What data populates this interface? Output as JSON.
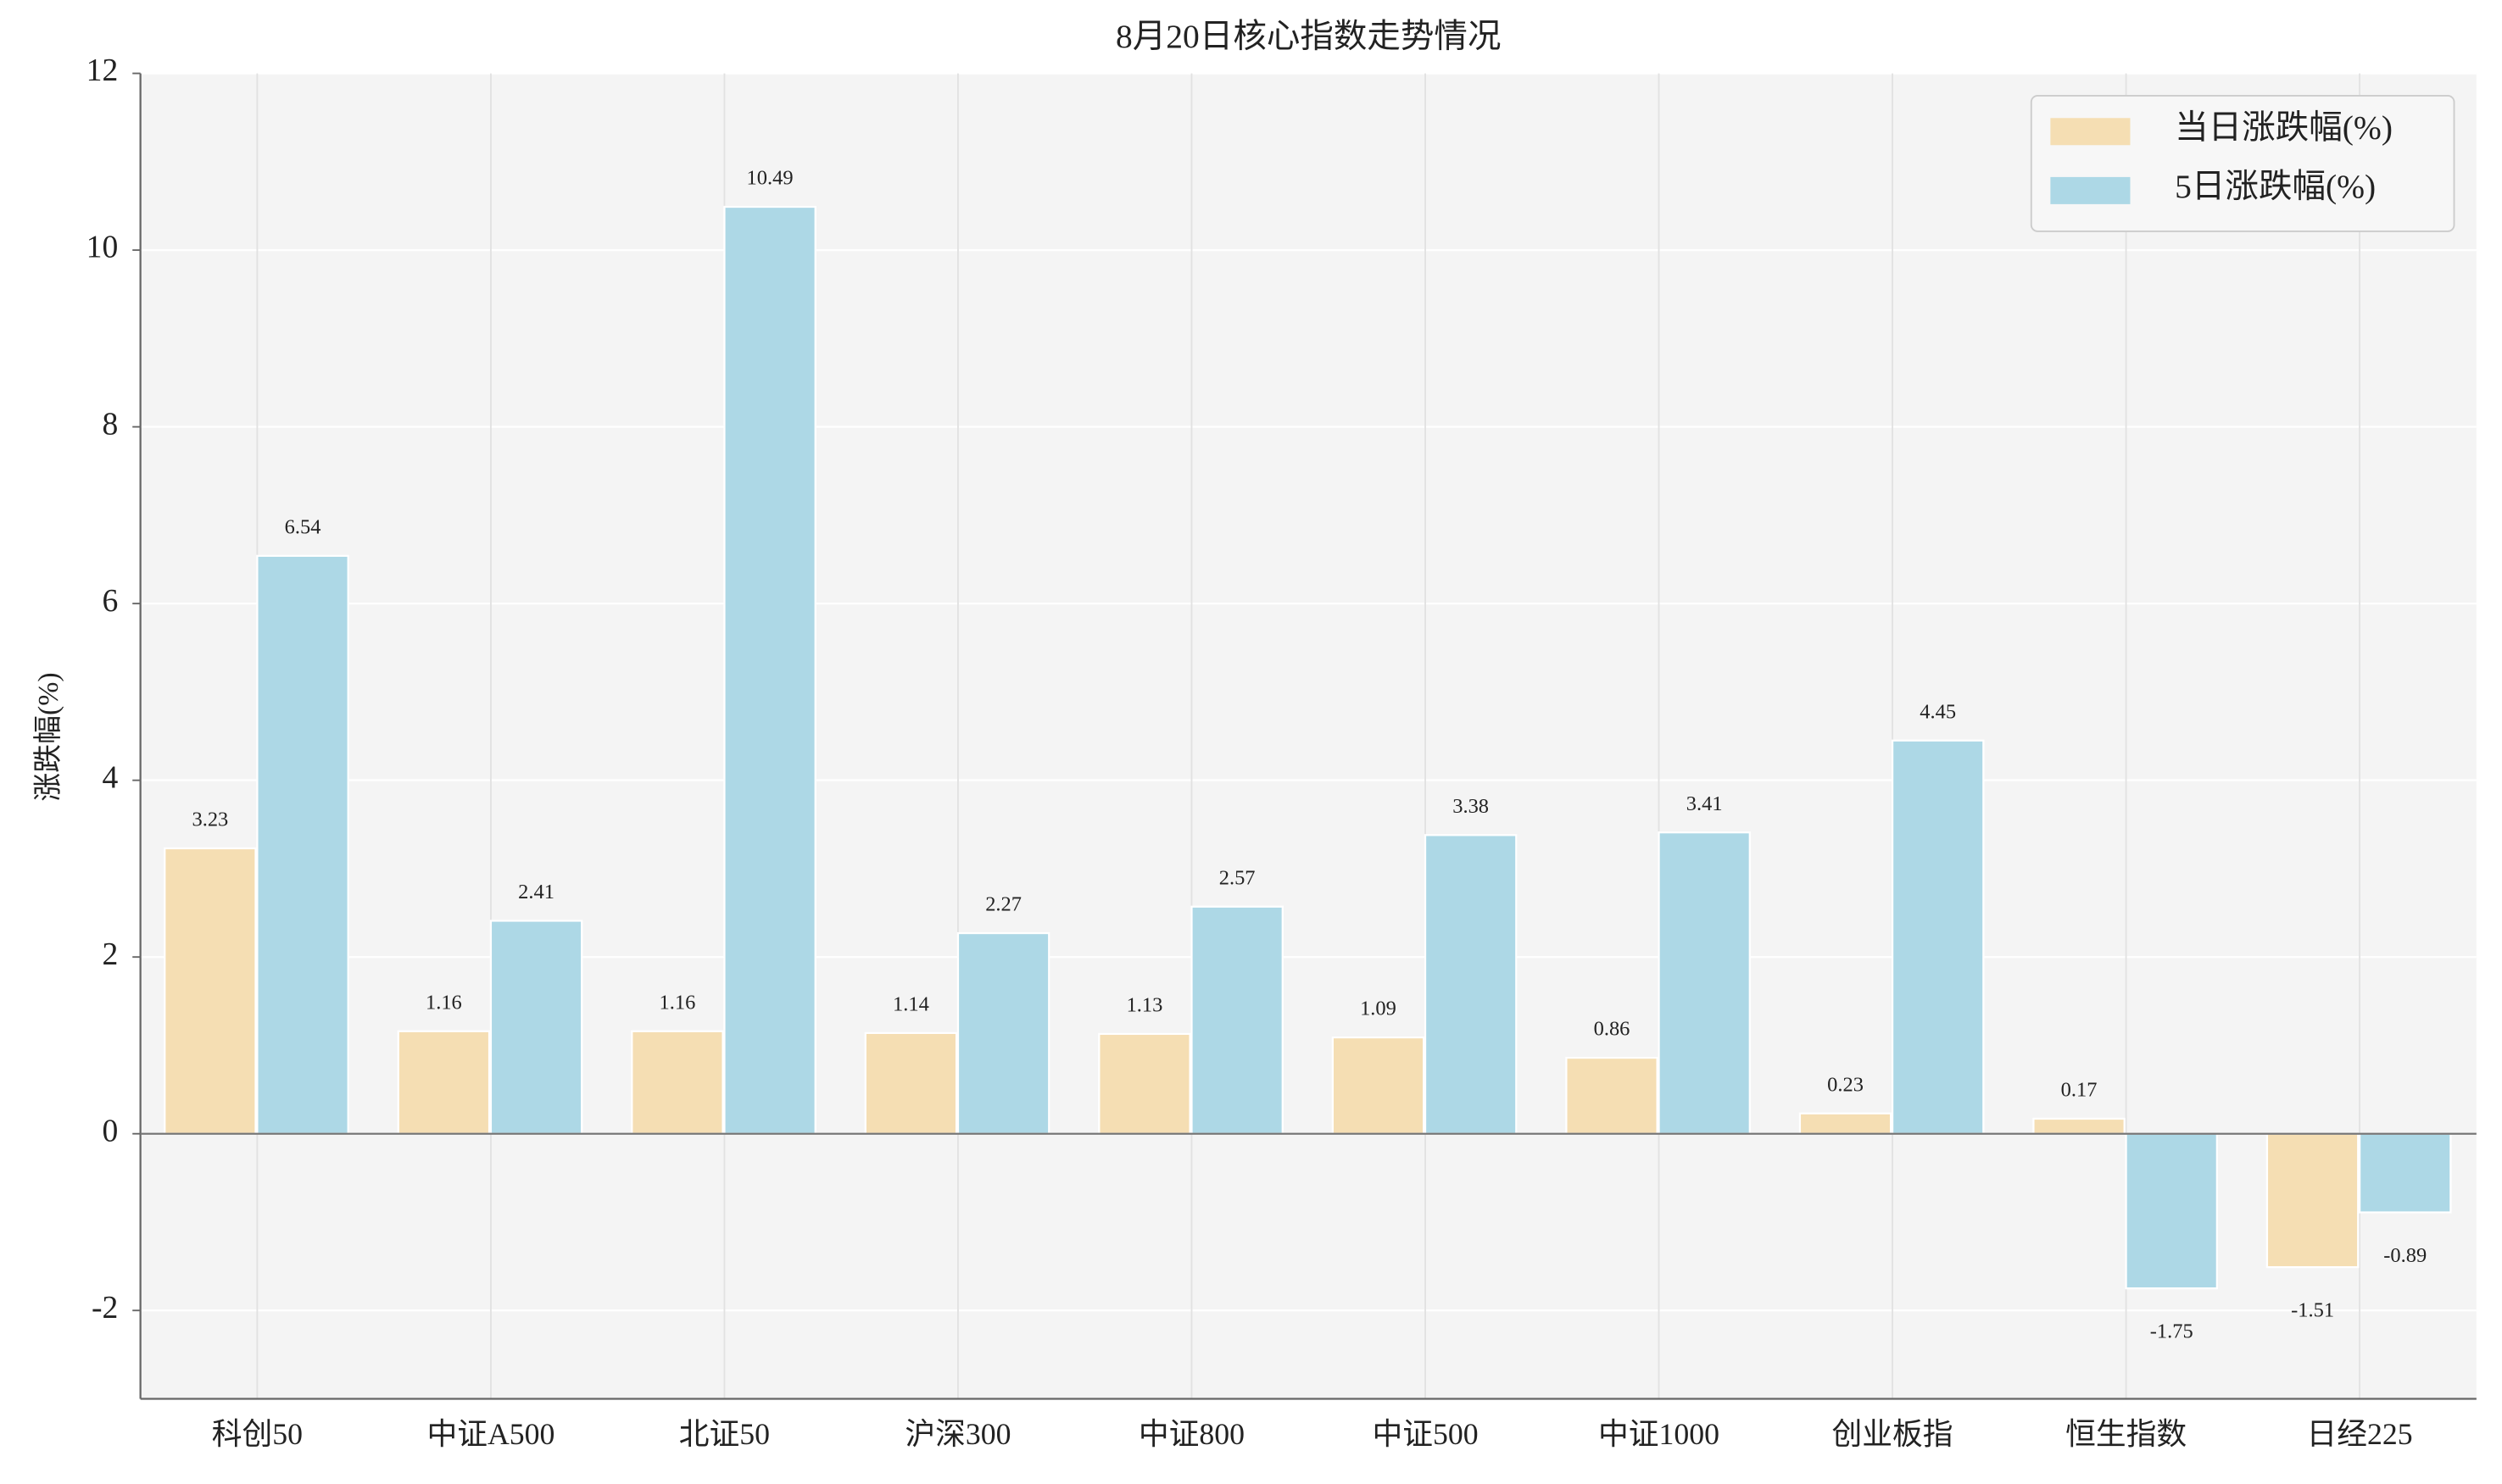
{
  "chart_data": {
    "type": "bar",
    "title": "8月20日核心指数走势情况",
    "y_label": "涨跌幅(%)",
    "categories": [
      "科创50",
      "中证A500",
      "北证50",
      "沪深300",
      "中证800",
      "中证500",
      "中证1000",
      "创业板指",
      "恒生指数",
      "日经225"
    ],
    "series": [
      {
        "name": "当日涨跌幅(%)",
        "color": "#f5deb3",
        "values": [
          3.23,
          1.16,
          1.16,
          1.14,
          1.13,
          1.09,
          0.86,
          0.23,
          0.17,
          -1.51
        ]
      },
      {
        "name": "5日涨跌幅(%)",
        "color": "#add8e6",
        "values": [
          6.54,
          2.41,
          10.49,
          2.27,
          2.57,
          3.38,
          3.41,
          4.45,
          -1.75,
          -0.89
        ]
      }
    ],
    "ylim": [
      -3,
      12
    ],
    "yticks": [
      -2,
      0,
      2,
      4,
      6,
      8,
      10,
      12
    ],
    "grid": true,
    "legend": "upper right"
  }
}
